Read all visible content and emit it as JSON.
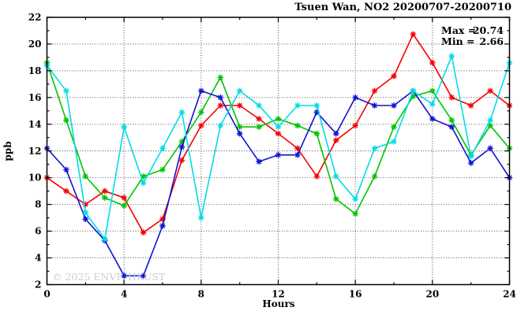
{
  "watermark": "© 2025 ENVF, HKUST",
  "chart_data": {
    "type": "line",
    "title": "Tsuen Wan, NO2 20200707-20200710",
    "xlabel": "Hours",
    "ylabel": "ppb",
    "xlim": [
      0,
      24
    ],
    "ylim": [
      2,
      22
    ],
    "grid": true,
    "x_ticks": [
      0,
      4,
      8,
      12,
      16,
      20,
      24
    ],
    "x_minor_ticks": [
      2,
      6,
      10,
      14,
      18,
      22
    ],
    "y_ticks": [
      2,
      4,
      6,
      8,
      10,
      12,
      14,
      16,
      18,
      20,
      22
    ],
    "y_minor_ticks": [
      3,
      5,
      7,
      9,
      11,
      13,
      15,
      17,
      19,
      21
    ],
    "x_gridlines": [
      4,
      8,
      12,
      16,
      20
    ],
    "y_gridlines": [
      4,
      6,
      8,
      10,
      12,
      14,
      16,
      18,
      20
    ],
    "x": [
      0,
      1,
      2,
      3,
      4,
      5,
      6,
      7,
      8,
      9,
      10,
      11,
      12,
      13,
      14,
      15,
      16,
      17,
      18,
      19,
      20,
      21,
      22,
      23,
      24
    ],
    "series": [
      {
        "name": "red",
        "color": "#f40000",
        "values": [
          10.0,
          9.0,
          8.0,
          9.0,
          8.5,
          5.9,
          6.9,
          11.3,
          13.9,
          15.4,
          15.4,
          14.4,
          13.3,
          12.2,
          10.1,
          12.8,
          13.9,
          16.5,
          17.6,
          20.74,
          18.6,
          16.0,
          15.4,
          16.5,
          15.4
        ]
      },
      {
        "name": "green",
        "color": "#00c400",
        "values": [
          18.6,
          14.3,
          10.1,
          8.5,
          7.9,
          10.1,
          10.6,
          12.7,
          14.9,
          17.5,
          13.8,
          13.8,
          14.4,
          13.9,
          13.3,
          8.4,
          7.3,
          10.1,
          13.8,
          16.1,
          16.5,
          14.3,
          11.7,
          13.9,
          12.2
        ]
      },
      {
        "name": "blue",
        "color": "#1212d0",
        "values": [
          12.2,
          10.6,
          6.9,
          5.3,
          2.66,
          2.66,
          6.4,
          12.3,
          16.5,
          16.0,
          13.3,
          11.2,
          11.7,
          11.7,
          14.9,
          13.3,
          16.0,
          15.4,
          15.4,
          16.5,
          14.4,
          13.8,
          11.1,
          12.2,
          10.0
        ]
      },
      {
        "name": "cyan",
        "color": "#00dce6",
        "values": [
          18.4,
          16.5,
          7.4,
          5.4,
          13.8,
          9.6,
          12.2,
          14.9,
          7.0,
          13.9,
          16.5,
          15.4,
          13.8,
          15.4,
          15.4,
          10.1,
          8.4,
          12.2,
          12.7,
          16.5,
          15.5,
          19.1,
          11.6,
          14.3,
          18.6
        ]
      }
    ],
    "stats": {
      "max_label": "Max =",
      "max_value": "20.74",
      "min_label": "Min =",
      "min_value": "2.66"
    },
    "legend": "none"
  }
}
